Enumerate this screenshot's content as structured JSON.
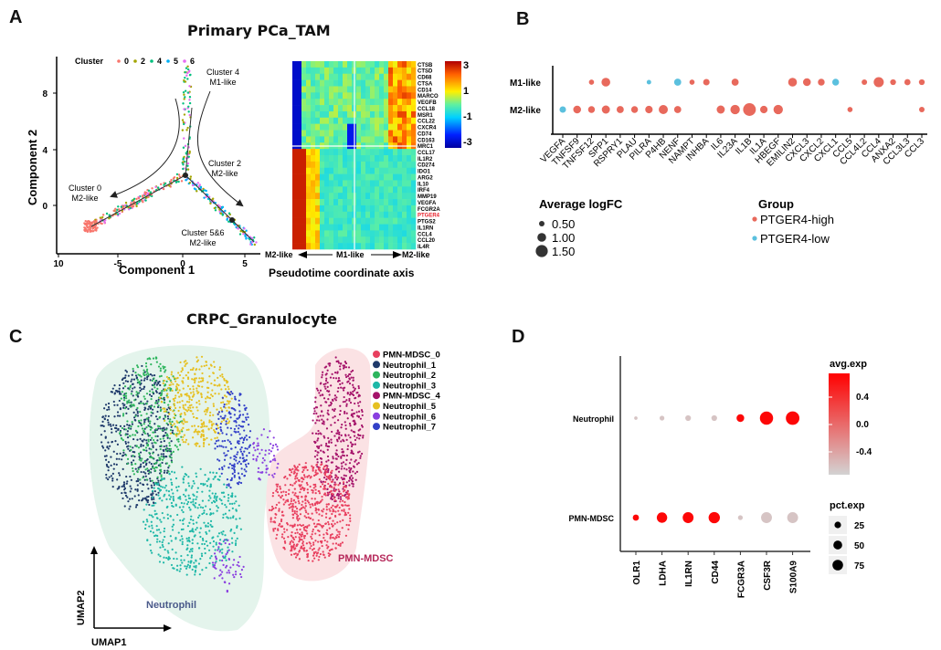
{
  "panels": {
    "A": {
      "letter": "A",
      "title": "Primary PCa_TAM"
    },
    "B": {
      "letter": "B"
    },
    "C": {
      "letter": "C",
      "title": "CRPC_Granulocyte"
    },
    "D": {
      "letter": "D"
    }
  },
  "chart_data": [
    {
      "id": "A-trajectory",
      "type": "scatter",
      "title": "Primary PCa_TAM",
      "xlabel": "Component 1",
      "ylabel": "Component 2",
      "xticks": [
        "10",
        "-5",
        "0",
        "5"
      ],
      "yticks": [
        "0",
        "4",
        "8"
      ],
      "legend_title": "Cluster",
      "legend": [
        {
          "label": "0",
          "color": "#F8766D"
        },
        {
          "label": "2",
          "color": "#A3A500"
        },
        {
          "label": "4",
          "color": "#00BF7D"
        },
        {
          "label": "5",
          "color": "#00B0F6"
        },
        {
          "label": "6",
          "color": "#E76BF3"
        }
      ],
      "annotations": [
        {
          "line1": "Cluster 4",
          "line2": "M1-like"
        },
        {
          "line1": "Cluster 2",
          "line2": "M2-like"
        },
        {
          "line1": "Cluster 0",
          "line2": "M2-like"
        },
        {
          "line1": "Cluster 5&6",
          "line2": "M2-like"
        }
      ]
    },
    {
      "id": "A-heatmap",
      "type": "heatmap",
      "xlabel": "Pseudotime coordinate axis",
      "axis_labels": {
        "left": "M2-like",
        "middle": "M1-like",
        "right": "M2-like"
      },
      "colorbar": {
        "ticks": [
          "3",
          "1",
          "-1",
          "-3"
        ],
        "range": [
          -3,
          3
        ]
      },
      "genes_top": [
        "CTSB",
        "CTSD",
        "CD68",
        "CTSA",
        "CD14",
        "MARCO",
        "VEGFB",
        "CCL18",
        "MSR1",
        "CCL22",
        "CXCR4",
        "CD74",
        "CD163",
        "MRC1"
      ],
      "genes_bottom": [
        "CCL17",
        "IL1R2",
        "CD274",
        "IDO1",
        "ARG2",
        "IL10",
        "IRF4",
        "MMP19",
        "VEGFA",
        "FCGR2A",
        "PTGER4",
        "PTGS2",
        "IL1RN",
        "CCL4",
        "CCL20",
        "IL4R"
      ],
      "highlight_gene": "PTGER4",
      "highlight_color": "#E8202A"
    },
    {
      "id": "B-dotplot",
      "type": "scatter",
      "rows": [
        "M1-like",
        "M2-like"
      ],
      "categories": [
        "VEGFA",
        "TNFSF9",
        "TNFSF12",
        "SPP1",
        "RSPRY1",
        "PLAU",
        "PILRA",
        "P4HB",
        "NENF",
        "NAMPT",
        "INHBA",
        "IL6",
        "IL23A",
        "IL1B",
        "IL1A",
        "HBEGF",
        "EMILIN2",
        "CXCL3",
        "CXCL2",
        "CXCL1",
        "CCL5",
        "CCL4L2",
        "CCL4",
        "ANXA2",
        "CCL3L3",
        "CCL3"
      ],
      "points": [
        {
          "row": "M1-like",
          "gene": "TNFSF12",
          "logFC": 0.45,
          "group": "PTGER4-high"
        },
        {
          "row": "M1-like",
          "gene": "SPP1",
          "logFC": 1.0,
          "group": "PTGER4-high"
        },
        {
          "row": "M1-like",
          "gene": "PILRA",
          "logFC": 0.35,
          "group": "PTGER4-low"
        },
        {
          "row": "M1-like",
          "gene": "NENF",
          "logFC": 0.75,
          "group": "PTGER4-low"
        },
        {
          "row": "M1-like",
          "gene": "NAMPT",
          "logFC": 0.45,
          "group": "PTGER4-high"
        },
        {
          "row": "M1-like",
          "gene": "INHBA",
          "logFC": 0.65,
          "group": "PTGER4-high"
        },
        {
          "row": "M1-like",
          "gene": "IL23A",
          "logFC": 0.75,
          "group": "PTGER4-high"
        },
        {
          "row": "M1-like",
          "gene": "EMILIN2",
          "logFC": 1.0,
          "group": "PTGER4-high"
        },
        {
          "row": "M1-like",
          "gene": "CXCL3",
          "logFC": 0.85,
          "group": "PTGER4-high"
        },
        {
          "row": "M1-like",
          "gene": "CXCL2",
          "logFC": 0.7,
          "group": "PTGER4-high"
        },
        {
          "row": "M1-like",
          "gene": "CXCL1",
          "logFC": 0.7,
          "group": "PTGER4-low"
        },
        {
          "row": "M1-like",
          "gene": "CCL4L2",
          "logFC": 0.5,
          "group": "PTGER4-high"
        },
        {
          "row": "M1-like",
          "gene": "CCL4",
          "logFC": 1.2,
          "group": "PTGER4-high"
        },
        {
          "row": "M1-like",
          "gene": "ANXA2",
          "logFC": 0.55,
          "group": "PTGER4-high"
        },
        {
          "row": "M1-like",
          "gene": "CCL3L3",
          "logFC": 0.6,
          "group": "PTGER4-high"
        },
        {
          "row": "M1-like",
          "gene": "CCL3",
          "logFC": 0.55,
          "group": "PTGER4-high"
        },
        {
          "row": "M2-like",
          "gene": "VEGFA",
          "logFC": 0.65,
          "group": "PTGER4-low"
        },
        {
          "row": "M2-like",
          "gene": "TNFSF9",
          "logFC": 0.85,
          "group": "PTGER4-high"
        },
        {
          "row": "M2-like",
          "gene": "TNFSF12",
          "logFC": 0.7,
          "group": "PTGER4-high"
        },
        {
          "row": "M2-like",
          "gene": "SPP1",
          "logFC": 0.9,
          "group": "PTGER4-high"
        },
        {
          "row": "M2-like",
          "gene": "RSPRY1",
          "logFC": 0.75,
          "group": "PTGER4-high"
        },
        {
          "row": "M2-like",
          "gene": "PLAU",
          "logFC": 0.7,
          "group": "PTGER4-high"
        },
        {
          "row": "M2-like",
          "gene": "PILRA",
          "logFC": 0.8,
          "group": "PTGER4-high"
        },
        {
          "row": "M2-like",
          "gene": "P4HB",
          "logFC": 1.05,
          "group": "PTGER4-high"
        },
        {
          "row": "M2-like",
          "gene": "NENF",
          "logFC": 0.75,
          "group": "PTGER4-high"
        },
        {
          "row": "M2-like",
          "gene": "IL6",
          "logFC": 0.9,
          "group": "PTGER4-high"
        },
        {
          "row": "M2-like",
          "gene": "IL23A",
          "logFC": 1.1,
          "group": "PTGER4-high"
        },
        {
          "row": "M2-like",
          "gene": "IL1B",
          "logFC": 1.6,
          "group": "PTGER4-high"
        },
        {
          "row": "M2-like",
          "gene": "IL1A",
          "logFC": 0.8,
          "group": "PTGER4-high"
        },
        {
          "row": "M2-like",
          "gene": "HBEGF",
          "logFC": 1.1,
          "group": "PTGER4-high"
        },
        {
          "row": "M2-like",
          "gene": "CCL5",
          "logFC": 0.45,
          "group": "PTGER4-high"
        },
        {
          "row": "M2-like",
          "gene": "CCL3",
          "logFC": 0.5,
          "group": "PTGER4-high"
        }
      ],
      "size_legend": {
        "title": "Average logFC",
        "values": [
          "0.50",
          "1.00",
          "1.50"
        ]
      },
      "color_legend": {
        "title": "Group",
        "items": [
          {
            "label": "PTGER4-high",
            "color": "#E8695C"
          },
          {
            "label": "PTGER4-low",
            "color": "#5BC0DE"
          }
        ]
      }
    },
    {
      "id": "C-umap",
      "type": "scatter",
      "title": "CRPC_Granulocyte",
      "xlabel": "UMAP1",
      "ylabel": "UMAP2",
      "legend": [
        {
          "label": "PMN-MDSC_0",
          "color": "#E8405F"
        },
        {
          "label": "Neutrophil_1",
          "color": "#1F3A6B"
        },
        {
          "label": "Neutrophil_2",
          "color": "#2DB55D"
        },
        {
          "label": "Neutrophil_3",
          "color": "#1FB8A8"
        },
        {
          "label": "PMN-MDSC_4",
          "color": "#A5136A"
        },
        {
          "label": "Neutrophil_5",
          "color": "#E6C022"
        },
        {
          "label": "Neutrophil_6",
          "color": "#8A3FE0"
        },
        {
          "label": "Neutrophil_7",
          "color": "#3340C8"
        }
      ],
      "region_labels": [
        {
          "label": "Neutrophil",
          "color": "#4A5A8A"
        },
        {
          "label": "PMN-MDSC",
          "color": "#B5285A"
        }
      ]
    },
    {
      "id": "D-dotplot",
      "type": "scatter",
      "rows": [
        "Neutrophil",
        "PMN-MDSC"
      ],
      "categories": [
        "OLR1",
        "LDHA",
        "IL1RN",
        "CD44",
        "FCGR3A",
        "CSF3R",
        "S100A9"
      ],
      "points": [
        {
          "row": "Neutrophil",
          "gene": "OLR1",
          "pct": 3,
          "avg": -0.6
        },
        {
          "row": "Neutrophil",
          "gene": "LDHA",
          "pct": 8,
          "avg": -0.6
        },
        {
          "row": "Neutrophil",
          "gene": "IL1RN",
          "pct": 12,
          "avg": -0.6
        },
        {
          "row": "Neutrophil",
          "gene": "CD44",
          "pct": 12,
          "avg": -0.6
        },
        {
          "row": "Neutrophil",
          "gene": "FCGR3A",
          "pct": 25,
          "avg": 0.7
        },
        {
          "row": "Neutrophil",
          "gene": "CSF3R",
          "pct": 85,
          "avg": 0.7
        },
        {
          "row": "Neutrophil",
          "gene": "S100A9",
          "pct": 90,
          "avg": 0.7
        },
        {
          "row": "PMN-MDSC",
          "gene": "OLR1",
          "pct": 15,
          "avg": 0.7
        },
        {
          "row": "PMN-MDSC",
          "gene": "LDHA",
          "pct": 50,
          "avg": 0.7
        },
        {
          "row": "PMN-MDSC",
          "gene": "IL1RN",
          "pct": 55,
          "avg": 0.7
        },
        {
          "row": "PMN-MDSC",
          "gene": "CD44",
          "pct": 60,
          "avg": 0.7
        },
        {
          "row": "PMN-MDSC",
          "gene": "FCGR3A",
          "pct": 8,
          "avg": -0.6
        },
        {
          "row": "PMN-MDSC",
          "gene": "CSF3R",
          "pct": 55,
          "avg": -0.6
        },
        {
          "row": "PMN-MDSC",
          "gene": "S100A9",
          "pct": 55,
          "avg": -0.6
        }
      ],
      "color_legend": {
        "title": "avg.exp",
        "ticks": [
          "0.4",
          "0.0",
          "-0.4"
        ],
        "range": [
          -0.7,
          0.75
        ],
        "low": "#D3D3D3",
        "high": "#FF0000"
      },
      "size_legend": {
        "title": "pct.exp",
        "values": [
          "25",
          "50",
          "75"
        ]
      }
    }
  ]
}
